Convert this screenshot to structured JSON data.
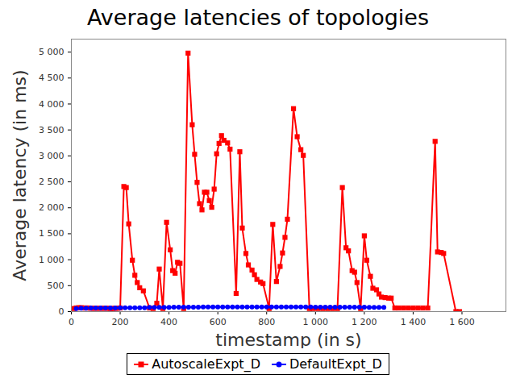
{
  "chart_data": {
    "type": "line",
    "title": "Average latencies of topologies",
    "x_label": "timestamp (in s)",
    "y_label": "Average latency (in ms)",
    "xlim": [
      0,
      1780
    ],
    "ylim": [
      0,
      5250
    ],
    "xticks": [
      0,
      200,
      400,
      600,
      800,
      {
        "value": 1000,
        "label": "1 000"
      },
      {
        "value": 1200,
        "label": "1 200"
      },
      {
        "value": 1400,
        "label": "1 400"
      },
      {
        "value": 1600,
        "label": "1 600"
      }
    ],
    "yticks": [
      0,
      500,
      {
        "value": 1000,
        "label": "1 000"
      },
      {
        "value": 1500,
        "label": "1 500"
      },
      {
        "value": 2000,
        "label": "2 000"
      },
      {
        "value": 2500,
        "label": "2 500"
      },
      {
        "value": 3000,
        "label": "3 000"
      },
      {
        "value": 3500,
        "label": "3 500"
      },
      {
        "value": 4000,
        "label": "4 000"
      },
      {
        "value": 4500,
        "label": "4 500"
      },
      {
        "value": 5000,
        "label": "5 000"
      }
    ],
    "grid": false,
    "legend": "bottom",
    "series": [
      {
        "name": "AutoscaleExpt_D",
        "color": "#ff0000",
        "marker": "square",
        "x": [
          10,
          20,
          30,
          40,
          50,
          60,
          70,
          80,
          90,
          100,
          110,
          120,
          130,
          140,
          150,
          160,
          170,
          180,
          190,
          200,
          215,
          225,
          235,
          250,
          260,
          270,
          280,
          295,
          320,
          335,
          350,
          360,
          375,
          390,
          405,
          415,
          425,
          435,
          445,
          460,
          478,
          495,
          505,
          515,
          525,
          535,
          545,
          555,
          565,
          575,
          585,
          595,
          605,
          615,
          625,
          640,
          650,
          675,
          690,
          700,
          715,
          725,
          740,
          750,
          760,
          775,
          785,
          810,
          825,
          840,
          855,
          865,
          875,
          885,
          910,
          925,
          940,
          950,
          975,
          990,
          1010,
          1030,
          1050,
          1070,
          1090,
          1110,
          1125,
          1135,
          1150,
          1160,
          1170,
          1185,
          1200,
          1210,
          1225,
          1235,
          1250,
          1260,
          1270,
          1285,
          1300,
          1310,
          1325,
          1340,
          1360,
          1380,
          1400,
          1420,
          1440,
          1460,
          1490,
          1500,
          1515,
          1525,
          1575,
          1590
        ],
        "values": [
          60,
          70,
          75,
          75,
          70,
          70,
          70,
          65,
          65,
          65,
          65,
          65,
          65,
          65,
          65,
          60,
          60,
          65,
          65,
          70,
          2410,
          2390,
          1690,
          990,
          700,
          560,
          460,
          400,
          70,
          60,
          160,
          820,
          60,
          1720,
          1190,
          790,
          740,
          950,
          930,
          60,
          4980,
          3600,
          3030,
          2490,
          2080,
          1960,
          2300,
          2300,
          2140,
          2010,
          2360,
          3040,
          3240,
          3390,
          3300,
          3250,
          3130,
          350,
          3080,
          1610,
          1120,
          900,
          800,
          710,
          620,
          570,
          540,
          60,
          1680,
          580,
          870,
          1130,
          1430,
          1780,
          3910,
          3370,
          3120,
          3010,
          60,
          60,
          60,
          60,
          60,
          60,
          60,
          2390,
          1230,
          1170,
          790,
          760,
          560,
          60,
          1460,
          990,
          680,
          450,
          420,
          340,
          280,
          270,
          260,
          260,
          70,
          70,
          70,
          70,
          70,
          70,
          70,
          70,
          3280,
          1150,
          1140,
          1120,
          0,
          0
        ]
      },
      {
        "name": "DefaultExpt_D",
        "color": "#0000ff",
        "marker": "circle",
        "x": [
          20,
          40,
          60,
          80,
          100,
          120,
          140,
          160,
          180,
          200,
          220,
          240,
          260,
          280,
          300,
          320,
          340,
          360,
          380,
          400,
          420,
          440,
          460,
          480,
          500,
          520,
          540,
          560,
          580,
          600,
          620,
          640,
          660,
          680,
          700,
          720,
          740,
          760,
          780,
          800,
          820,
          840,
          860,
          880,
          900,
          920,
          940,
          960,
          980,
          1000,
          1020,
          1040,
          1060,
          1080,
          1100,
          1120,
          1140,
          1160,
          1180,
          1200,
          1220,
          1240,
          1260,
          1280
        ],
        "values": [
          60,
          65,
          65,
          70,
          70,
          70,
          70,
          70,
          70,
          75,
          75,
          75,
          75,
          75,
          75,
          80,
          80,
          80,
          80,
          80,
          85,
          85,
          85,
          85,
          85,
          85,
          90,
          90,
          90,
          90,
          90,
          90,
          90,
          90,
          90,
          90,
          90,
          90,
          90,
          90,
          90,
          90,
          90,
          90,
          90,
          90,
          90,
          90,
          90,
          85,
          85,
          85,
          85,
          85,
          85,
          85,
          85,
          85,
          85,
          85,
          80,
          80,
          80,
          80
        ]
      }
    ]
  }
}
